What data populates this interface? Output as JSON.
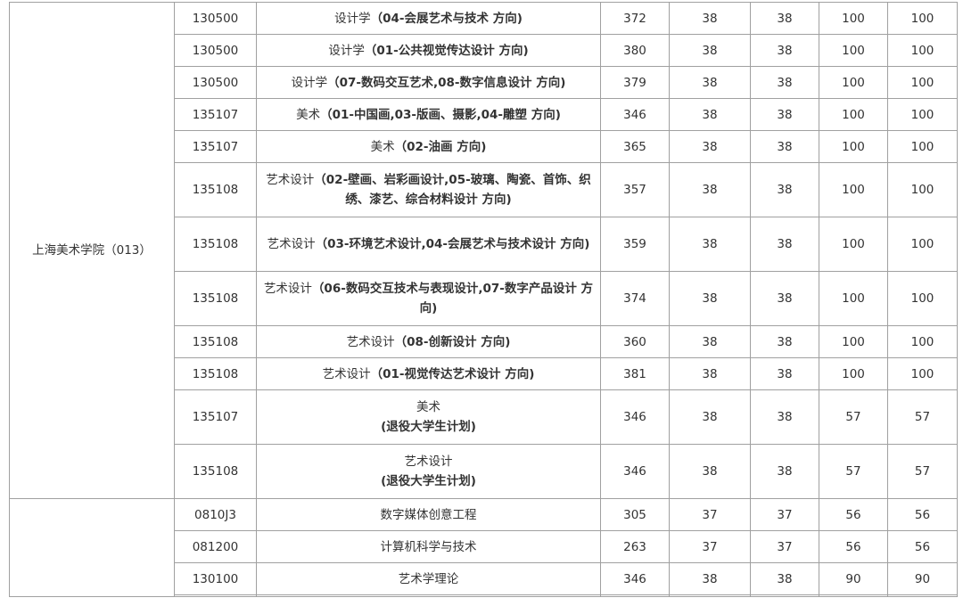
{
  "groups": [
    {
      "college": "上海美术学院（013）",
      "rows": [
        {
          "code": "130500",
          "name": "设计学",
          "direction": "（04-会展艺术与技术 方向)",
          "total": "372",
          "politics": "38",
          "english": "38",
          "course1": "100",
          "course2": "100"
        },
        {
          "code": "130500",
          "name": "设计学",
          "direction": "（01-公共视觉传达设计 方向)",
          "total": "380",
          "politics": "38",
          "english": "38",
          "course1": "100",
          "course2": "100"
        },
        {
          "code": "130500",
          "name": "设计学",
          "direction": "（07-数码交互艺术,08-数字信息设计 方向)",
          "total": "379",
          "politics": "38",
          "english": "38",
          "course1": "100",
          "course2": "100"
        },
        {
          "code": "135107",
          "name": "美术",
          "direction": "（01-中国画,03-版画、摄影,04-雕塑 方向)",
          "total": "346",
          "politics": "38",
          "english": "38",
          "course1": "100",
          "course2": "100"
        },
        {
          "code": "135107",
          "name": "美术",
          "direction": "（02-油画 方向)",
          "total": "365",
          "politics": "38",
          "english": "38",
          "course1": "100",
          "course2": "100"
        },
        {
          "code": "135108",
          "name": "艺术设计",
          "direction": "（02-壁画、岩彩画设计,05-玻璃、陶瓷、首饰、织绣、漆艺、综合材料设计 方向)",
          "total": "357",
          "politics": "38",
          "english": "38",
          "course1": "100",
          "course2": "100",
          "tall": true
        },
        {
          "code": "135108",
          "name": "艺术设计",
          "direction": "（03-环境艺术设计,04-会展艺术与技术设计 方向)",
          "total": "359",
          "politics": "38",
          "english": "38",
          "course1": "100",
          "course2": "100",
          "tall": true
        },
        {
          "code": "135108",
          "name": "艺术设计",
          "direction": "（06-数码交互技术与表现设计,07-数字产品设计 方向)",
          "total": "374",
          "politics": "38",
          "english": "38",
          "course1": "100",
          "course2": "100",
          "tall": true
        },
        {
          "code": "135108",
          "name": "艺术设计",
          "direction": "（08-创新设计 方向)",
          "total": "360",
          "politics": "38",
          "english": "38",
          "course1": "100",
          "course2": "100"
        },
        {
          "code": "135108",
          "name": "艺术设计",
          "direction": "（01-视觉传达艺术设计 方向)",
          "total": "381",
          "politics": "38",
          "english": "38",
          "course1": "100",
          "course2": "100"
        },
        {
          "code": "135107",
          "name": "美术",
          "direction": "(退役大学生计划)",
          "total": "346",
          "politics": "38",
          "english": "38",
          "course1": "57",
          "course2": "57",
          "tall": true,
          "br": true
        },
        {
          "code": "135108",
          "name": "艺术设计",
          "direction": "(退役大学生计划)",
          "total": "346",
          "politics": "38",
          "english": "38",
          "course1": "57",
          "course2": "57",
          "tall": true,
          "br": true
        }
      ]
    },
    {
      "college": "",
      "rows": [
        {
          "code": "0810J3",
          "name": "数字媒体创意工程",
          "direction": "",
          "total": "305",
          "politics": "37",
          "english": "37",
          "course1": "56",
          "course2": "56",
          "plain": true
        },
        {
          "code": "081200",
          "name": "计算机科学与技术",
          "direction": "",
          "total": "263",
          "politics": "37",
          "english": "37",
          "course1": "56",
          "course2": "56",
          "plain": true
        },
        {
          "code": "130100",
          "name": "艺术学理论",
          "direction": "",
          "total": "346",
          "politics": "38",
          "english": "38",
          "course1": "90",
          "course2": "90",
          "plain": true
        }
      ]
    }
  ]
}
